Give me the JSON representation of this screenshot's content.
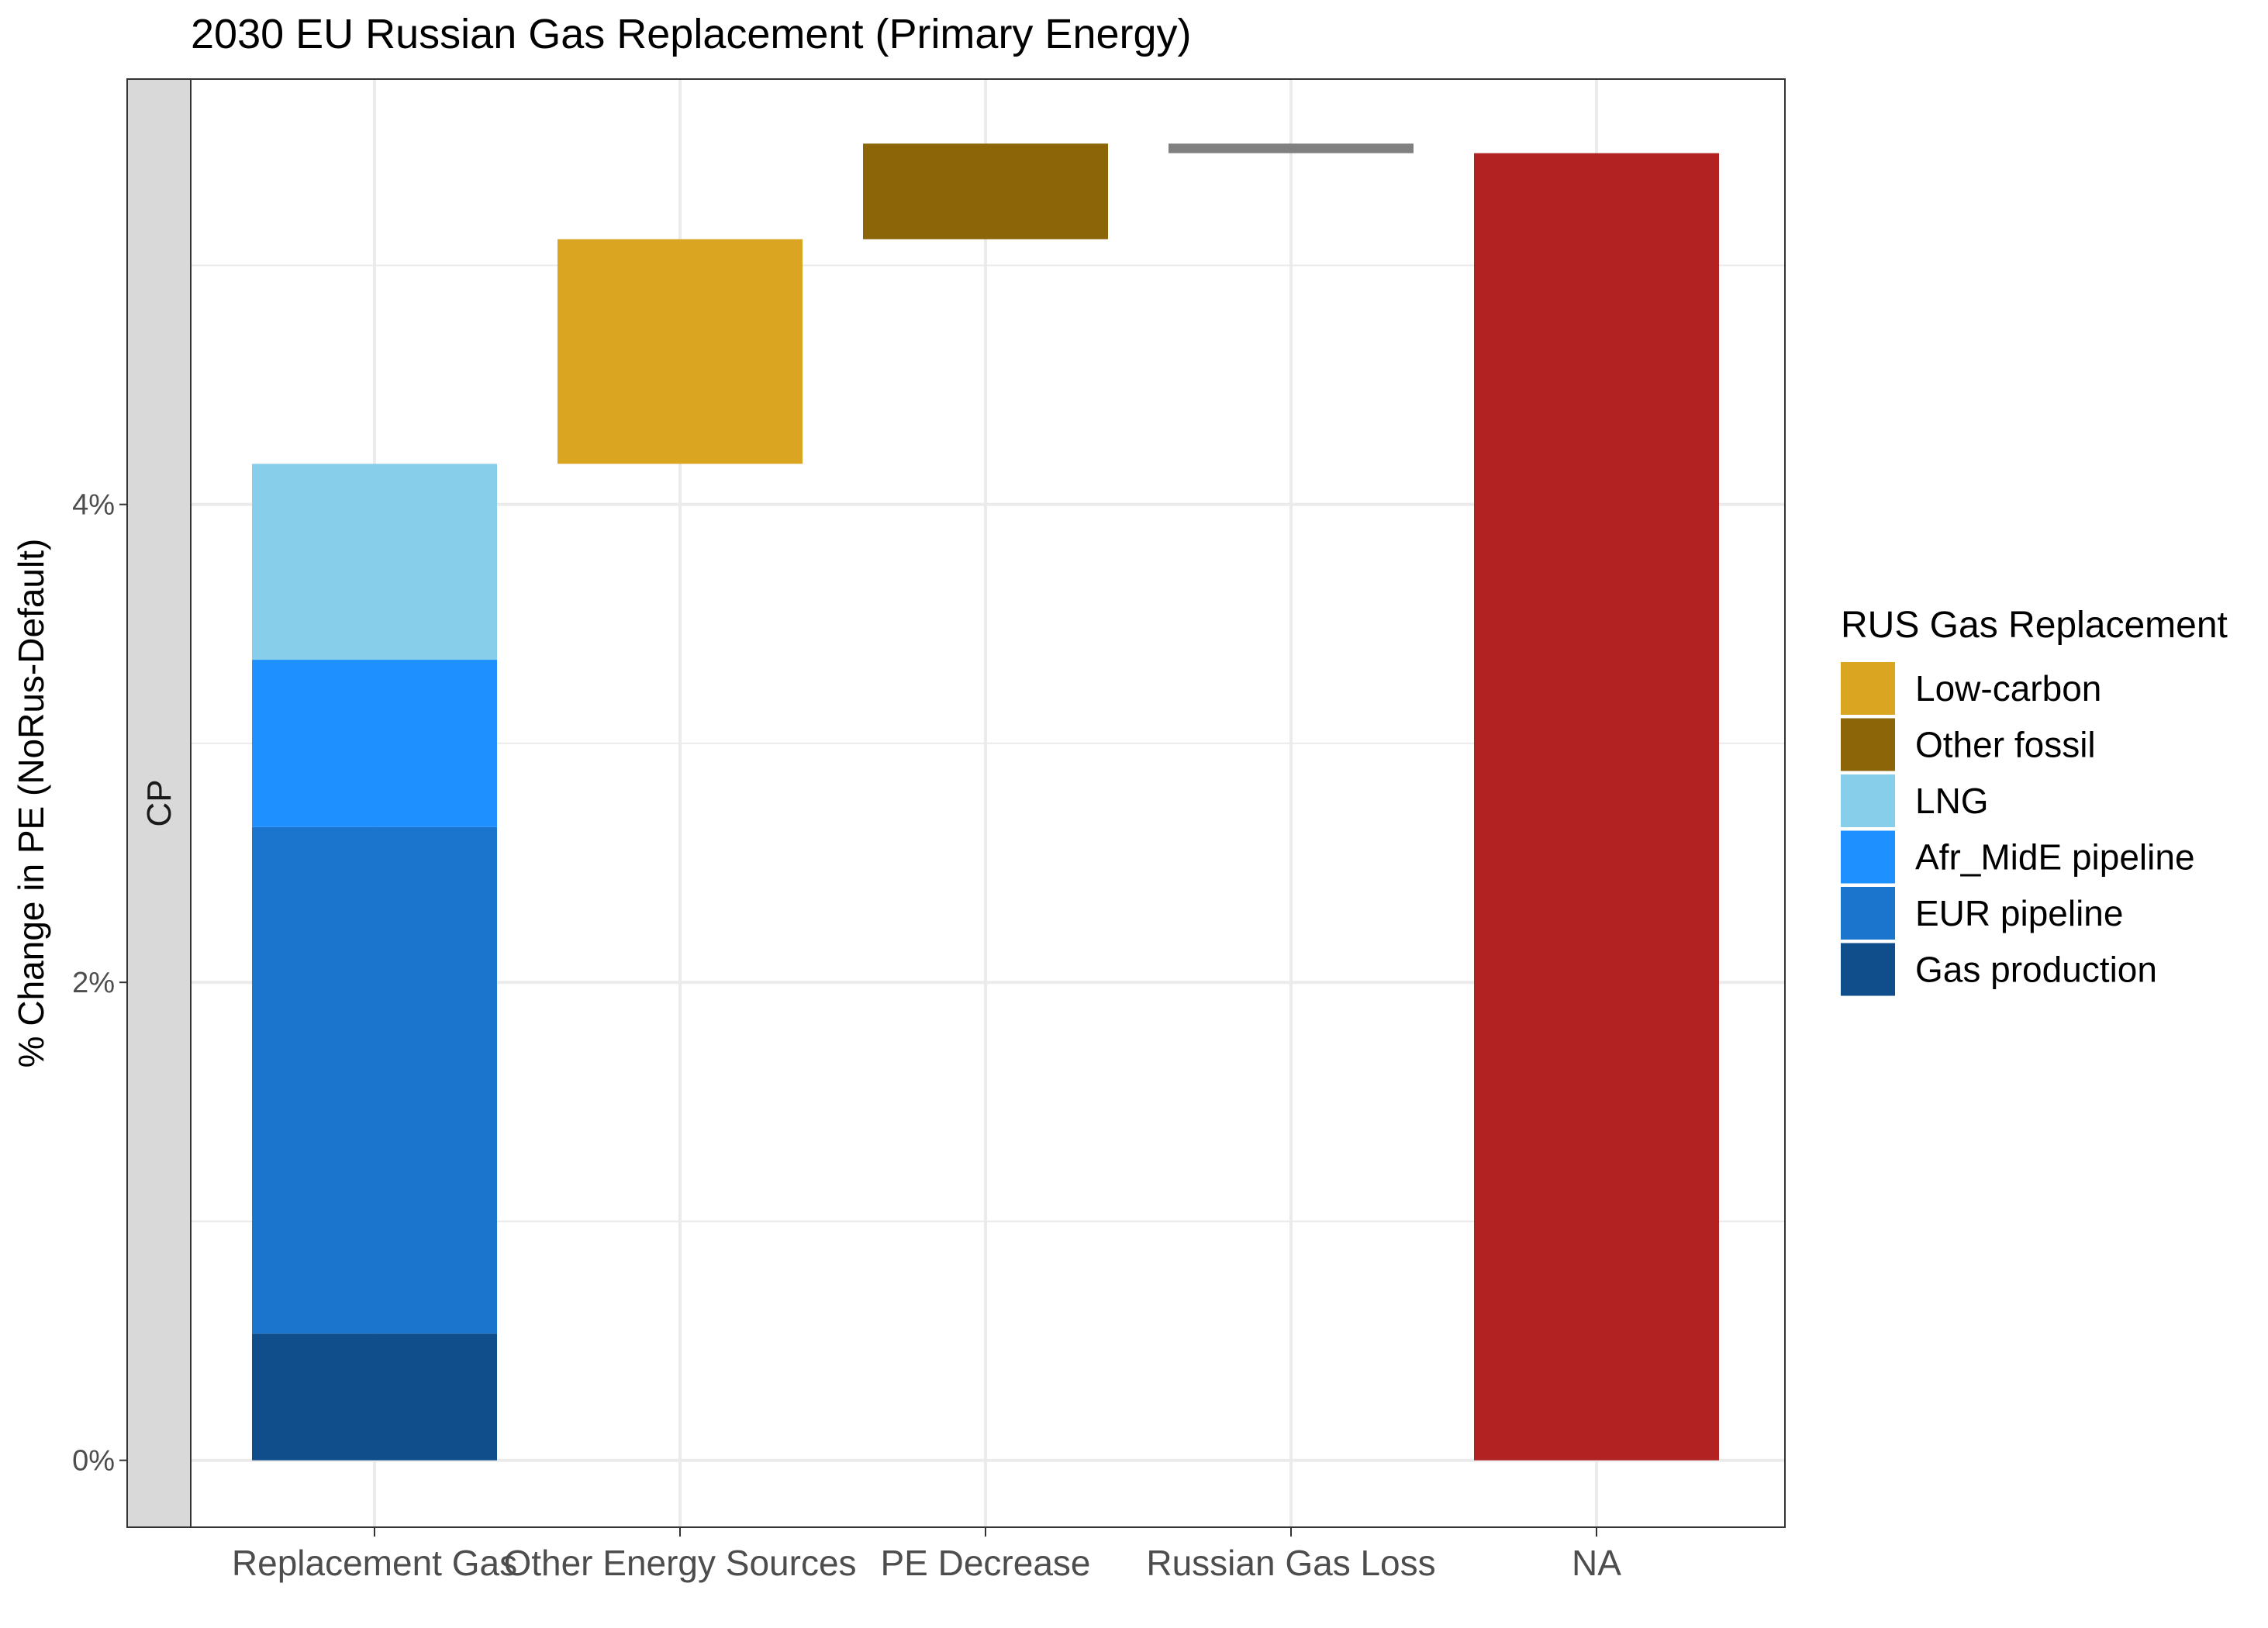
{
  "chart_data": {
    "type": "bar",
    "subtype": "waterfall-stacked",
    "title": "2030 EU Russian Gas Replacement (Primary Energy)",
    "ylabel": "% Change in PE (NoRus-Default)",
    "xlabel": "",
    "facet_label": "CP",
    "categories": [
      "Replacement Gas",
      "Other Energy Sources",
      "PE Decrease",
      "Russian Gas Loss",
      "NA"
    ],
    "ylim": [
      -0.28,
      5.78
    ],
    "yticks": [
      0,
      2,
      4
    ],
    "ytick_labels": [
      "0%",
      "2%",
      "4%"
    ],
    "grid": true,
    "legend": {
      "title": "RUS Gas Replacement",
      "position": "right",
      "entries": [
        {
          "label": "Low-carbon",
          "color": "#DAA520"
        },
        {
          "label": "Other fossil",
          "color": "#8B6508"
        },
        {
          "label": "LNG",
          "color": "#87CEEB"
        },
        {
          "label": "Afr_MidE pipeline",
          "color": "#1E90FF"
        },
        {
          "label": "EUR pipeline",
          "color": "#1C75CD"
        },
        {
          "label": "Gas production",
          "color": "#104E8B"
        }
      ]
    },
    "series": [
      {
        "category": "Replacement Gas",
        "name": "Gas production",
        "ymin": 0.0,
        "ymax": 0.53,
        "color": "#104E8B"
      },
      {
        "category": "Replacement Gas",
        "name": "EUR pipeline",
        "ymin": 0.53,
        "ymax": 2.65,
        "color": "#1C75CD"
      },
      {
        "category": "Replacement Gas",
        "name": "Afr_MidE pipeline",
        "ymin": 2.65,
        "ymax": 3.35,
        "color": "#1E90FF"
      },
      {
        "category": "Replacement Gas",
        "name": "LNG",
        "ymin": 3.35,
        "ymax": 4.17,
        "color": "#87CEEB"
      },
      {
        "category": "Other Energy Sources",
        "name": "Low-carbon",
        "ymin": 4.17,
        "ymax": 5.11,
        "color": "#DAA520"
      },
      {
        "category": "PE Decrease",
        "name": "Other fossil",
        "ymin": 5.11,
        "ymax": 5.51,
        "color": "#8B6508"
      },
      {
        "category": "Russian Gas Loss",
        "ymin": 5.47,
        "ymax": 5.51,
        "color": "#808080"
      },
      {
        "category": "NA",
        "ymin": 0.0,
        "ymax": 5.47,
        "color": "#B22222"
      }
    ]
  }
}
